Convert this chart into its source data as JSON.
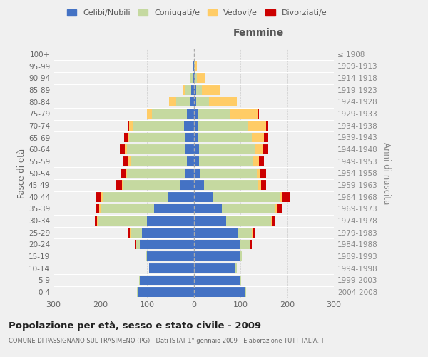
{
  "age_groups": [
    "0-4",
    "5-9",
    "10-14",
    "15-19",
    "20-24",
    "25-29",
    "30-34",
    "35-39",
    "40-44",
    "45-49",
    "50-54",
    "55-59",
    "60-64",
    "65-69",
    "70-74",
    "75-79",
    "80-84",
    "85-89",
    "90-94",
    "95-99",
    "100+"
  ],
  "birth_years": [
    "2004-2008",
    "1999-2003",
    "1994-1998",
    "1989-1993",
    "1984-1988",
    "1979-1983",
    "1974-1978",
    "1969-1973",
    "1964-1968",
    "1959-1963",
    "1954-1958",
    "1949-1953",
    "1944-1948",
    "1939-1943",
    "1934-1938",
    "1929-1933",
    "1924-1928",
    "1919-1923",
    "1914-1918",
    "1909-1913",
    "≤ 1908"
  ],
  "males": {
    "celibi": [
      120,
      115,
      95,
      100,
      115,
      110,
      100,
      85,
      55,
      30,
      18,
      15,
      18,
      18,
      20,
      15,
      8,
      5,
      2,
      1,
      0
    ],
    "coniugati": [
      2,
      2,
      1,
      2,
      8,
      25,
      105,
      115,
      140,
      120,
      125,
      120,
      125,
      120,
      110,
      75,
      30,
      12,
      5,
      1,
      0
    ],
    "vedovi": [
      0,
      0,
      0,
      0,
      2,
      2,
      2,
      2,
      3,
      3,
      3,
      5,
      5,
      3,
      8,
      10,
      15,
      5,
      2,
      0,
      0
    ],
    "divorziati": [
      0,
      0,
      0,
      0,
      1,
      2,
      5,
      8,
      10,
      12,
      10,
      12,
      10,
      8,
      2,
      0,
      0,
      0,
      0,
      0,
      0
    ]
  },
  "females": {
    "nubili": [
      110,
      100,
      90,
      100,
      100,
      95,
      70,
      60,
      40,
      22,
      15,
      12,
      12,
      10,
      10,
      8,
      5,
      5,
      2,
      1,
      0
    ],
    "coniugate": [
      2,
      2,
      2,
      3,
      20,
      30,
      95,
      115,
      145,
      115,
      120,
      115,
      118,
      115,
      105,
      70,
      28,
      12,
      5,
      1,
      0
    ],
    "vedove": [
      0,
      0,
      0,
      0,
      2,
      2,
      3,
      5,
      5,
      8,
      8,
      12,
      18,
      25,
      40,
      60,
      60,
      40,
      18,
      5,
      1
    ],
    "divorziate": [
      0,
      0,
      0,
      0,
      2,
      3,
      5,
      8,
      15,
      10,
      12,
      12,
      12,
      10,
      5,
      2,
      0,
      0,
      0,
      0,
      0
    ]
  },
  "colors": {
    "celibi": "#4472C4",
    "coniugati": "#C5D9A0",
    "vedovi": "#FFCC66",
    "divorziati": "#CC0000"
  },
  "xlim": 300,
  "title": "Popolazione per età, sesso e stato civile - 2009",
  "subtitle": "COMUNE DI PASSIGNANO SUL TRASIMENO (PG) - Dati ISTAT 1° gennaio 2009 - Elaborazione TUTTITALIA.IT",
  "ylabel_left": "Fasce di età",
  "ylabel_right": "Anni di nascita",
  "legend_labels": [
    "Celibi/Nubili",
    "Coniugati/e",
    "Vedovi/e",
    "Divorziati/e"
  ],
  "bg_color": "#f0f0f0",
  "plot_bg": "#f0f0f0"
}
